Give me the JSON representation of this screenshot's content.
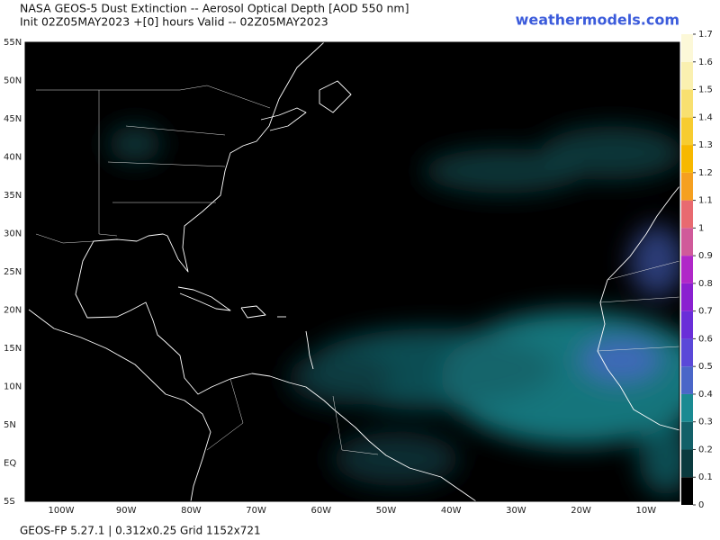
{
  "header": {
    "title": "NASA GEOS-5 Dust Extinction -- Aerosol Optical Depth [AOD 550 nm]",
    "subtitle": "Init 02Z05MAY2023 +[0] hours Valid -- 02Z05MAY2023",
    "site": "weathermodels.com"
  },
  "map": {
    "lat_labels": [
      "55N",
      "50N",
      "45N",
      "40N",
      "35N",
      "30N",
      "25N",
      "20N",
      "15N",
      "10N",
      "5N",
      "EQ",
      "5S"
    ],
    "lon_labels": [
      "100W",
      "90W",
      "80W",
      "70W",
      "60W",
      "50W",
      "40W",
      "30W",
      "20W",
      "10W"
    ]
  },
  "colorbar": {
    "ticks": [
      0,
      0.1,
      0.2,
      0.3,
      0.4,
      0.5,
      0.6,
      0.7,
      0.8,
      0.9,
      1,
      1.1,
      1.2,
      1.3,
      1.4,
      1.5,
      1.6,
      1.7
    ],
    "colors": [
      "#000000",
      "#0a3a3e",
      "#136068",
      "#1a8a92",
      "#4a66c8",
      "#5a48d8",
      "#6a2ed8",
      "#8a20d0",
      "#b028c8",
      "#d05a9a",
      "#e86a70",
      "#f5a020",
      "#f7b800",
      "#f7cc30",
      "#f8e070",
      "#faf0b0",
      "#fcf8d8"
    ]
  },
  "footer": "GEOS-FP 5.27.1 | 0.312x0.25 Grid 1152x721"
}
